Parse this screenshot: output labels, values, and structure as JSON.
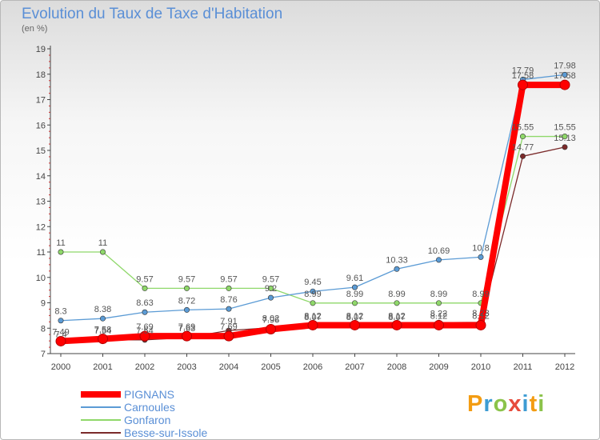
{
  "title": "Evolution du Taux de Taxe d'Habitation",
  "subtitle": "(en %)",
  "logo": {
    "text": "Proxiti",
    "colors": [
      "#f39c12",
      "#3d9cd3",
      "#8bc34a",
      "#e74c3c",
      "#3d9cd3",
      "#f39c12",
      "#8bc34a"
    ]
  },
  "chart_data": {
    "type": "line",
    "title": "Evolution du Taux de Taxe d'Habitation",
    "ylabel": "(en %)",
    "xlabel": "",
    "x": [
      "2000",
      "2001",
      "2002",
      "2003",
      "2004",
      "2005",
      "2006",
      "2007",
      "2008",
      "2009",
      "2010",
      "2011",
      "2012"
    ],
    "ylim": [
      7,
      19
    ],
    "yticks": [
      7,
      8,
      9,
      10,
      11,
      12,
      13,
      14,
      15,
      16,
      17,
      18,
      19
    ],
    "grid": false,
    "legend_position": "bottom-left",
    "series": [
      {
        "name": "PIGNANS",
        "color": "#ff0000",
        "values": [
          7.49,
          7.58,
          7.69,
          7.69,
          7.69,
          7.96,
          8.12,
          8.12,
          8.12,
          8.12,
          8.12,
          17.58,
          17.58
        ],
        "labels": [
          "7.49",
          "7.58",
          "7.69",
          "7.69",
          "7.69",
          "7.96",
          "8.12",
          "8.12",
          "8.12",
          "8.12",
          "8.12",
          "17.58",
          "17.58"
        ]
      },
      {
        "name": "Carnoules",
        "color": "#5b9bd5",
        "values": [
          8.3,
          8.38,
          8.63,
          8.72,
          8.76,
          9.2,
          9.45,
          9.61,
          10.33,
          10.69,
          10.8,
          17.79,
          17.98
        ],
        "labels": [
          "8.3",
          "8.38",
          "8.63",
          "8.72",
          "8.76",
          "9.2",
          "9.45",
          "9.61",
          "10.33",
          "10.69",
          "10.8",
          "17.79",
          "17.98"
        ]
      },
      {
        "name": "Gonfaron",
        "color": "#8fd86a",
        "values": [
          11,
          11,
          9.57,
          9.57,
          9.57,
          9.57,
          8.99,
          8.99,
          8.99,
          8.99,
          8.99,
          15.55,
          15.55
        ],
        "labels": [
          "11",
          "11",
          "9.57",
          "9.57",
          "9.57",
          "9.57",
          "8.99",
          "8.99",
          "8.99",
          "8.99",
          "8.99",
          "15.55",
          "15.55"
        ]
      },
      {
        "name": "Besse-sur-Issole",
        "color": "#7b2a2a",
        "values": [
          7.4,
          7.54,
          7.54,
          7.63,
          7.91,
          8.02,
          8.07,
          8.07,
          8.07,
          8.22,
          8.23,
          14.77,
          15.13
        ],
        "labels": [
          "7.4",
          "7.54",
          "7.54",
          "7.63",
          "7.91",
          "8.02",
          "8.07",
          "8.07",
          "8.07",
          "8.22",
          "8.23",
          "14.77",
          "15.13"
        ]
      }
    ]
  }
}
